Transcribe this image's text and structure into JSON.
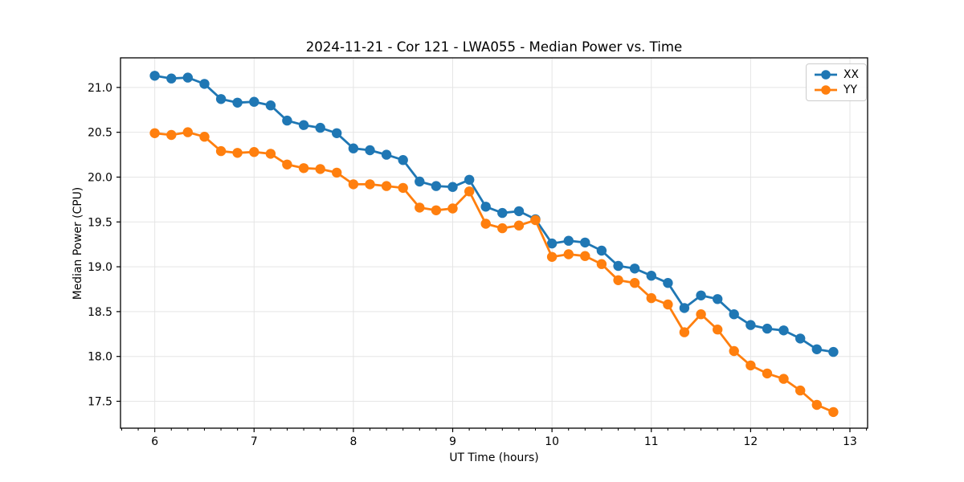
{
  "figure": {
    "background": "#ffffff"
  },
  "chart_data": {
    "type": "line",
    "title": "2024-11-21 - Cor 121 - LWA055 - Median Power vs. Time",
    "xlabel": "UT Time (hours)",
    "ylabel": "Median Power (CPU)",
    "xlim": [
      5.655,
      13.178
    ],
    "ylim": [
      17.2,
      21.33
    ],
    "xticks": [
      6,
      7,
      8,
      9,
      10,
      11,
      12,
      13
    ],
    "xtick_labels": [
      "6",
      "7",
      "8",
      "9",
      "10",
      "11",
      "12",
      "13"
    ],
    "yticks": [
      17.5,
      18.0,
      18.5,
      19.0,
      19.5,
      20.0,
      20.5,
      21.0
    ],
    "ytick_labels": [
      "17.5",
      "18.0",
      "18.5",
      "19.0",
      "19.5",
      "20.0",
      "20.5",
      "21.0"
    ],
    "x_minor_ticks_per_hour": 6,
    "grid": true,
    "grid_color": "#e5e5e5",
    "spine_color": "#000000",
    "legend_position": "upper right",
    "x": [
      6.0,
      6.167,
      6.333,
      6.5,
      6.667,
      6.833,
      7.0,
      7.167,
      7.333,
      7.5,
      7.667,
      7.833,
      8.0,
      8.167,
      8.333,
      8.5,
      8.667,
      8.833,
      9.0,
      9.167,
      9.333,
      9.5,
      9.667,
      9.833,
      10.0,
      10.167,
      10.333,
      10.5,
      10.667,
      10.833,
      11.0,
      11.167,
      11.333,
      11.5,
      11.667,
      11.833,
      12.0,
      12.167,
      12.333,
      12.5,
      12.667,
      12.833
    ],
    "series": [
      {
        "name": "XX",
        "color": "#1f77b4",
        "values": [
          21.13,
          21.1,
          21.11,
          21.04,
          20.87,
          20.83,
          20.84,
          20.8,
          20.63,
          20.58,
          20.55,
          20.49,
          20.32,
          20.3,
          20.25,
          20.19,
          19.95,
          19.9,
          19.89,
          19.97,
          19.67,
          19.6,
          19.62,
          19.53,
          19.26,
          19.29,
          19.27,
          19.18,
          19.01,
          18.98,
          18.9,
          18.82,
          18.54,
          18.68,
          18.64,
          18.47,
          18.35,
          18.31,
          18.29,
          18.2,
          18.08,
          18.05
        ]
      },
      {
        "name": "YY",
        "color": "#ff7f0e",
        "values": [
          20.49,
          20.47,
          20.5,
          20.45,
          20.29,
          20.27,
          20.28,
          20.26,
          20.14,
          20.1,
          20.09,
          20.05,
          19.92,
          19.92,
          19.9,
          19.88,
          19.66,
          19.63,
          19.65,
          19.84,
          19.48,
          19.43,
          19.46,
          19.52,
          19.11,
          19.14,
          19.12,
          19.03,
          18.85,
          18.82,
          18.65,
          18.58,
          18.27,
          18.47,
          18.3,
          18.06,
          17.9,
          17.81,
          17.75,
          17.62,
          17.46,
          17.38
        ]
      }
    ]
  }
}
